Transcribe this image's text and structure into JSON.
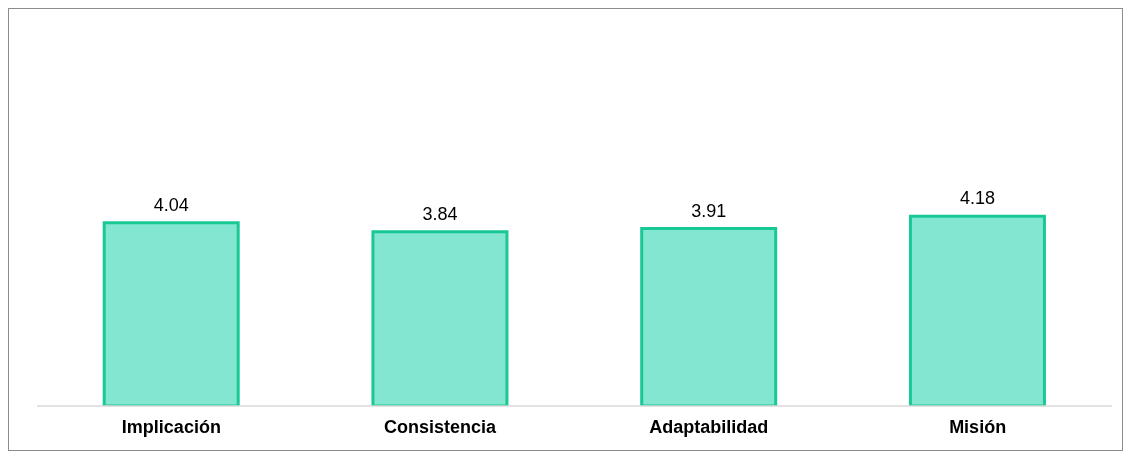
{
  "chart_data": {
    "type": "bar",
    "categories": [
      "Implicación",
      "Consistencia",
      "Adaptabilidad",
      "Misión"
    ],
    "values": [
      4.04,
      3.84,
      3.91,
      4.18
    ],
    "color": "#83e6d1",
    "data_labels": true
  }
}
